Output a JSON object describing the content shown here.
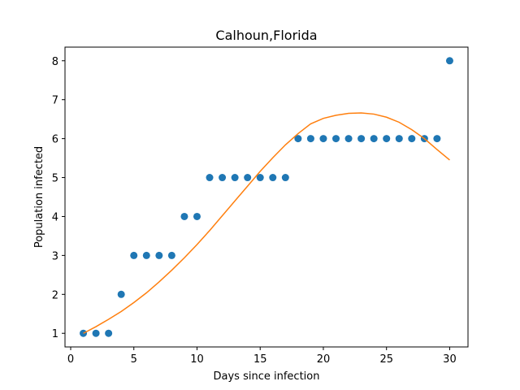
{
  "chart_data": {
    "type": "scatter",
    "title": "Calhoun,Florida",
    "xlabel": "Days since infection",
    "ylabel": "Population infected",
    "xlim": [
      -0.45,
      31.45
    ],
    "ylim": [
      0.65,
      8.35
    ],
    "xticks": [
      0,
      5,
      10,
      15,
      20,
      25,
      30
    ],
    "yticks": [
      1,
      2,
      3,
      4,
      5,
      6,
      7,
      8
    ],
    "grid": false,
    "series": [
      {
        "kind": "scatter",
        "color": "#1f77b4",
        "x": [
          1,
          2,
          3,
          4,
          5,
          6,
          7,
          8,
          9,
          10,
          11,
          12,
          13,
          14,
          15,
          16,
          17,
          18,
          19,
          20,
          21,
          22,
          23,
          24,
          25,
          26,
          27,
          28,
          29,
          30
        ],
        "y": [
          1,
          1,
          1,
          2,
          3,
          3,
          3,
          3,
          4,
          4,
          5,
          5,
          5,
          5,
          5,
          5,
          5,
          6,
          6,
          6,
          6,
          6,
          6,
          6,
          6,
          6,
          6,
          6,
          6,
          8
        ]
      },
      {
        "kind": "line",
        "color": "#ff7f0e",
        "x": [
          1,
          2,
          3,
          4,
          5,
          6,
          7,
          8,
          9,
          10,
          11,
          12,
          13,
          14,
          15,
          16,
          17,
          18,
          19,
          20,
          21,
          22,
          23,
          24,
          25,
          26,
          27,
          28,
          29,
          30
        ],
        "y": [
          1.0,
          1.17,
          1.36,
          1.56,
          1.79,
          2.04,
          2.32,
          2.62,
          2.94,
          3.28,
          3.64,
          4.02,
          4.4,
          4.78,
          5.16,
          5.51,
          5.84,
          6.13,
          6.38,
          6.52,
          6.6,
          6.65,
          6.66,
          6.63,
          6.55,
          6.42,
          6.23,
          6.0,
          5.72,
          5.45
        ]
      }
    ]
  }
}
